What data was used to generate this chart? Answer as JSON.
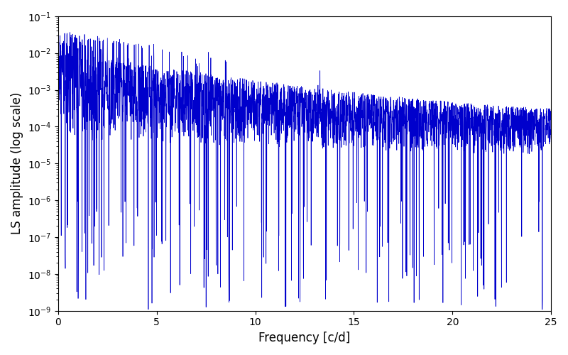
{
  "title": "",
  "xlabel": "Frequency [c/d]",
  "ylabel": "LS amplitude (log scale)",
  "xlim": [
    0,
    25
  ],
  "ylim": [
    1e-09,
    0.1
  ],
  "line_color": "#0000cc",
  "line_width": 0.5,
  "xticks": [
    0,
    5,
    10,
    15,
    20,
    25
  ],
  "figsize": [
    8.0,
    5.0
  ],
  "dpi": 100,
  "n_points": 3000,
  "seed": 42,
  "background_color": "#ffffff"
}
